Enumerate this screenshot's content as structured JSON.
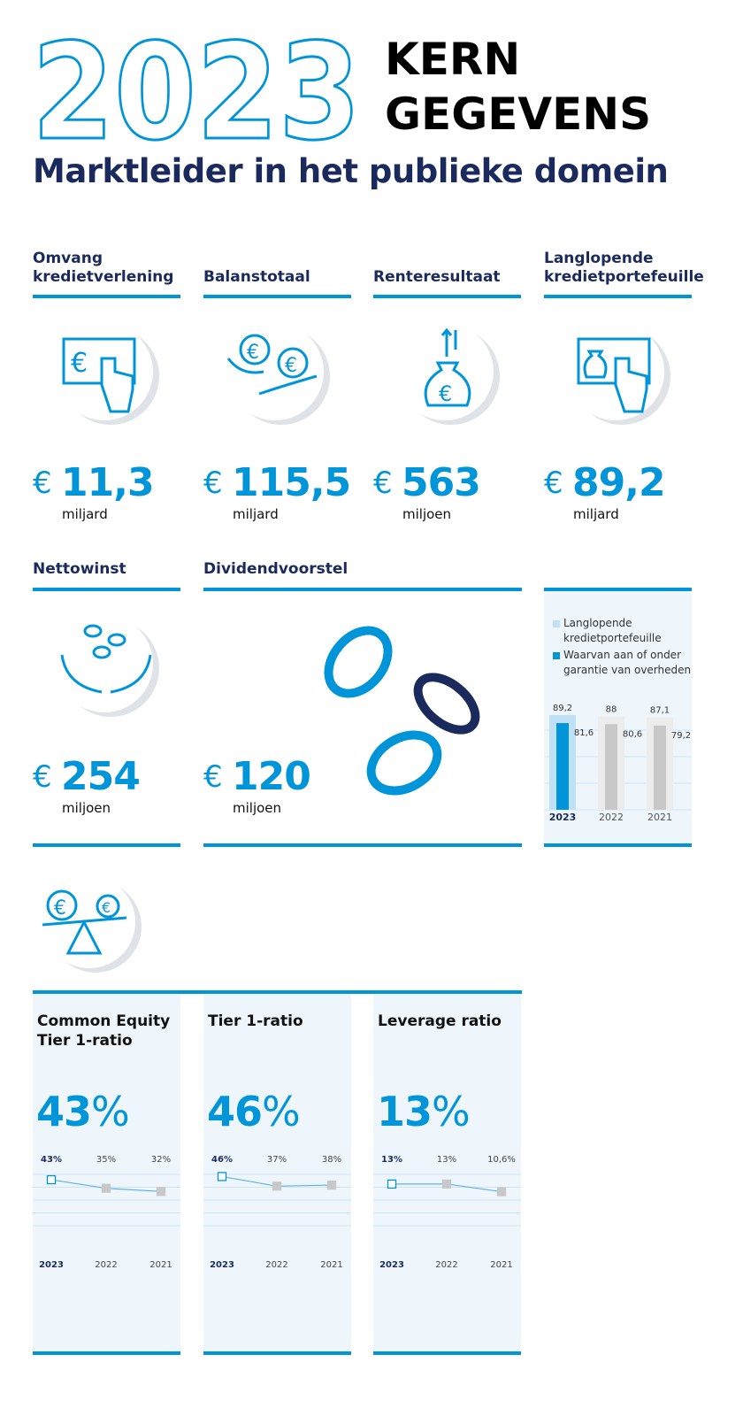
{
  "header": {
    "year": "2023",
    "title": [
      "KERN",
      "GEGEVENS"
    ],
    "subtitle": "Marktleider in het publieke domein"
  },
  "kpis": [
    {
      "label": "Omvang kredietverlening",
      "currency": "€",
      "value": "11,3",
      "unit": "miljard"
    },
    {
      "label": "Balanstotaal",
      "currency": "€",
      "value": "115,5",
      "unit": "miljard"
    },
    {
      "label": "Renteresultaat",
      "currency": "€",
      "value": "563",
      "unit": "miljoen"
    },
    {
      "label": "Langlopende kredietportefeuille",
      "currency": "€",
      "value": "89,2",
      "unit": "miljard"
    },
    {
      "label": "Nettowinst",
      "currency": "€",
      "value": "254",
      "unit": "miljoen"
    },
    {
      "label": "Dividendvoorstel",
      "currency": "€",
      "value": "120",
      "unit": "miljoen"
    }
  ],
  "chart_data": [
    {
      "type": "bar",
      "categories": [
        "2023",
        "2022",
        "2021"
      ],
      "series": [
        {
          "name": "Langlopende kredietportefeuille",
          "color": "#bfe0f5",
          "colors": [
            "#bfe0f5",
            "#ececec",
            "#ececec"
          ],
          "values": [
            89.2,
            88,
            87.1
          ],
          "value_labels": [
            "89,2",
            "88",
            "87,1"
          ]
        },
        {
          "name": "Waarvan aan of onder garantie van overheden",
          "color": "#0094d9",
          "colors": [
            "#0094d9",
            "#c8c8c8",
            "#c8c8c8"
          ],
          "values": [
            81.6,
            80.6,
            79.2
          ],
          "value_labels": [
            "81,6",
            "80,6",
            "79,2"
          ]
        }
      ],
      "ylim": [
        0,
        100
      ],
      "yticks": [
        0,
        25,
        50,
        75
      ],
      "grid": true
    },
    {
      "type": "line",
      "title": "Common Equity Tier 1-ratio",
      "headline": "43",
      "headline_unit": "%",
      "categories": [
        "2023",
        "2022",
        "2021"
      ],
      "series": [
        {
          "color": "#5cb3e3",
          "marker_colors": [
            "#ffffff",
            "#c8c8c8",
            "#c8c8c8"
          ],
          "values": [
            43,
            35,
            32
          ],
          "value_labels": [
            "43%",
            "35%",
            "32%"
          ]
        }
      ],
      "ylim": [
        0,
        48
      ],
      "yticks": [
        0,
        12,
        24,
        36,
        48
      ],
      "grid": true
    },
    {
      "type": "line",
      "title": "Tier 1-ratio",
      "headline": "46",
      "headline_unit": "%",
      "categories": [
        "2023",
        "2022",
        "2021"
      ],
      "series": [
        {
          "color": "#5cb3e3",
          "marker_colors": [
            "#ffffff",
            "#c8c8c8",
            "#c8c8c8"
          ],
          "values": [
            46,
            37,
            38
          ],
          "value_labels": [
            "46%",
            "37%",
            "38%"
          ]
        }
      ],
      "ylim": [
        0,
        48
      ],
      "yticks": [
        0,
        12,
        24,
        36,
        48
      ],
      "grid": true
    },
    {
      "type": "line",
      "title": "Leverage ratio",
      "headline": "13",
      "headline_unit": "%",
      "categories": [
        "2023",
        "2022",
        "2021"
      ],
      "series": [
        {
          "color": "#5cb3e3",
          "marker_colors": [
            "#ffffff",
            "#c8c8c8",
            "#c8c8c8"
          ],
          "values": [
            13,
            13,
            10.6
          ],
          "value_labels": [
            "13%",
            "13%",
            "10,6%"
          ]
        }
      ],
      "ylim": [
        0,
        16
      ],
      "yticks": [
        0,
        4,
        8,
        12,
        16
      ],
      "grid": true
    }
  ]
}
